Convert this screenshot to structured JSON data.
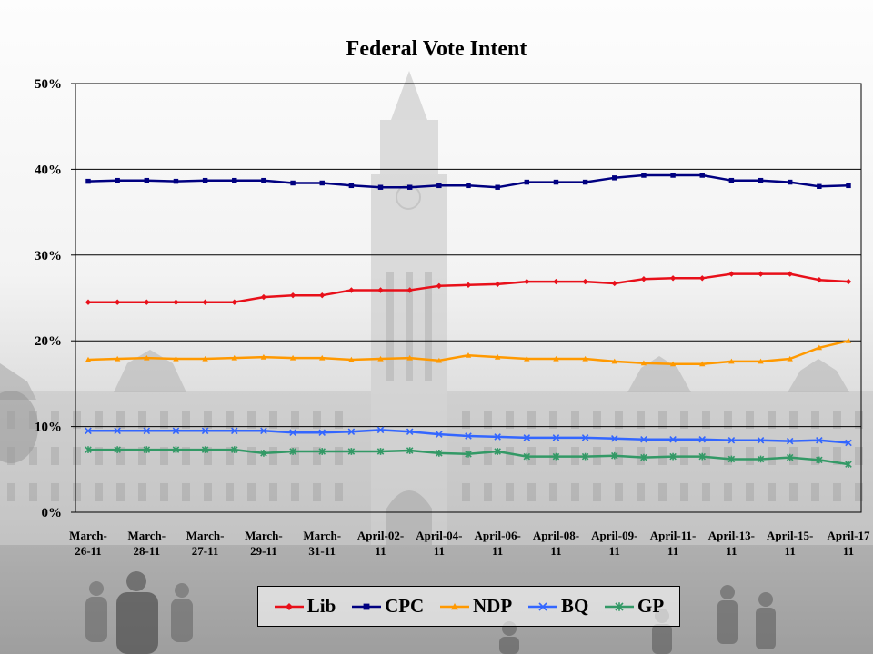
{
  "chart_data": {
    "type": "line",
    "title": "Federal Vote Intent",
    "xlabel": "",
    "ylabel": "",
    "ylim": [
      0,
      50
    ],
    "y_ticks": [
      0,
      10,
      20,
      30,
      40,
      50
    ],
    "y_tick_labels": [
      "0%",
      "10%",
      "20%",
      "30%",
      "40%",
      "50%"
    ],
    "grid": true,
    "legend_position": "bottom",
    "x": [
      0,
      1,
      2,
      3,
      4,
      5,
      6,
      7,
      8,
      9,
      10,
      11,
      12,
      13,
      14,
      15,
      16,
      17,
      18,
      19,
      20,
      21,
      22,
      23,
      24,
      25,
      26
    ],
    "x_tick_labels": [
      {
        "index": 0,
        "lines": [
          "March-",
          "26-11"
        ]
      },
      {
        "index": 2,
        "lines": [
          "March-",
          "28-11"
        ]
      },
      {
        "index": 4,
        "lines": [
          "March-",
          "27-11"
        ]
      },
      {
        "index": 6,
        "lines": [
          "March-",
          "29-11"
        ]
      },
      {
        "index": 8,
        "lines": [
          "March-",
          "31-11"
        ]
      },
      {
        "index": 10,
        "lines": [
          "April-02-",
          "11"
        ]
      },
      {
        "index": 12,
        "lines": [
          "April-04-",
          "11"
        ]
      },
      {
        "index": 14,
        "lines": [
          "April-06-",
          "11"
        ]
      },
      {
        "index": 16,
        "lines": [
          "April-08-",
          "11"
        ]
      },
      {
        "index": 18,
        "lines": [
          "April-09-",
          "11"
        ]
      },
      {
        "index": 20,
        "lines": [
          "April-11-",
          "11"
        ]
      },
      {
        "index": 22,
        "lines": [
          "April-13-",
          "11"
        ]
      },
      {
        "index": 24,
        "lines": [
          "April-15-",
          "11"
        ]
      },
      {
        "index": 26,
        "lines": [
          "April-17",
          "11"
        ]
      }
    ],
    "series": [
      {
        "name": "Lib",
        "color": "#e8101a",
        "marker": "diamond",
        "values": [
          24.5,
          24.5,
          24.5,
          24.5,
          24.5,
          24.5,
          25.1,
          25.3,
          25.3,
          25.9,
          25.9,
          25.9,
          26.4,
          26.5,
          26.6,
          26.9,
          26.9,
          26.9,
          26.7,
          27.2,
          27.3,
          27.3,
          27.8,
          27.8,
          27.8,
          27.1,
          26.9
        ]
      },
      {
        "name": "CPC",
        "color": "#000080",
        "marker": "square",
        "values": [
          38.6,
          38.7,
          38.7,
          38.6,
          38.7,
          38.7,
          38.7,
          38.4,
          38.4,
          38.1,
          37.9,
          37.9,
          38.1,
          38.1,
          37.9,
          38.5,
          38.5,
          38.5,
          39.0,
          39.3,
          39.3,
          39.3,
          38.7,
          38.7,
          38.5,
          38.0,
          38.1
        ]
      },
      {
        "name": "NDP",
        "color": "#ff9900",
        "marker": "triangle",
        "values": [
          17.8,
          17.9,
          18.0,
          17.9,
          17.9,
          18.0,
          18.1,
          18.0,
          18.0,
          17.8,
          17.9,
          18.0,
          17.7,
          18.3,
          18.1,
          17.9,
          17.9,
          17.9,
          17.6,
          17.4,
          17.3,
          17.3,
          17.6,
          17.6,
          17.9,
          19.2,
          20.0
        ]
      },
      {
        "name": "BQ",
        "color": "#3366ff",
        "marker": "x",
        "values": [
          9.5,
          9.5,
          9.5,
          9.5,
          9.5,
          9.5,
          9.5,
          9.3,
          9.3,
          9.4,
          9.6,
          9.4,
          9.1,
          8.9,
          8.8,
          8.7,
          8.7,
          8.7,
          8.6,
          8.5,
          8.5,
          8.5,
          8.4,
          8.4,
          8.3,
          8.4,
          8.1
        ]
      },
      {
        "name": "GP",
        "color": "#339966",
        "marker": "asterisk",
        "values": [
          7.3,
          7.3,
          7.3,
          7.3,
          7.3,
          7.3,
          6.9,
          7.1,
          7.1,
          7.1,
          7.1,
          7.2,
          6.9,
          6.8,
          7.1,
          6.5,
          6.5,
          6.5,
          6.6,
          6.4,
          6.5,
          6.5,
          6.2,
          6.2,
          6.4,
          6.1,
          5.6
        ]
      }
    ]
  }
}
